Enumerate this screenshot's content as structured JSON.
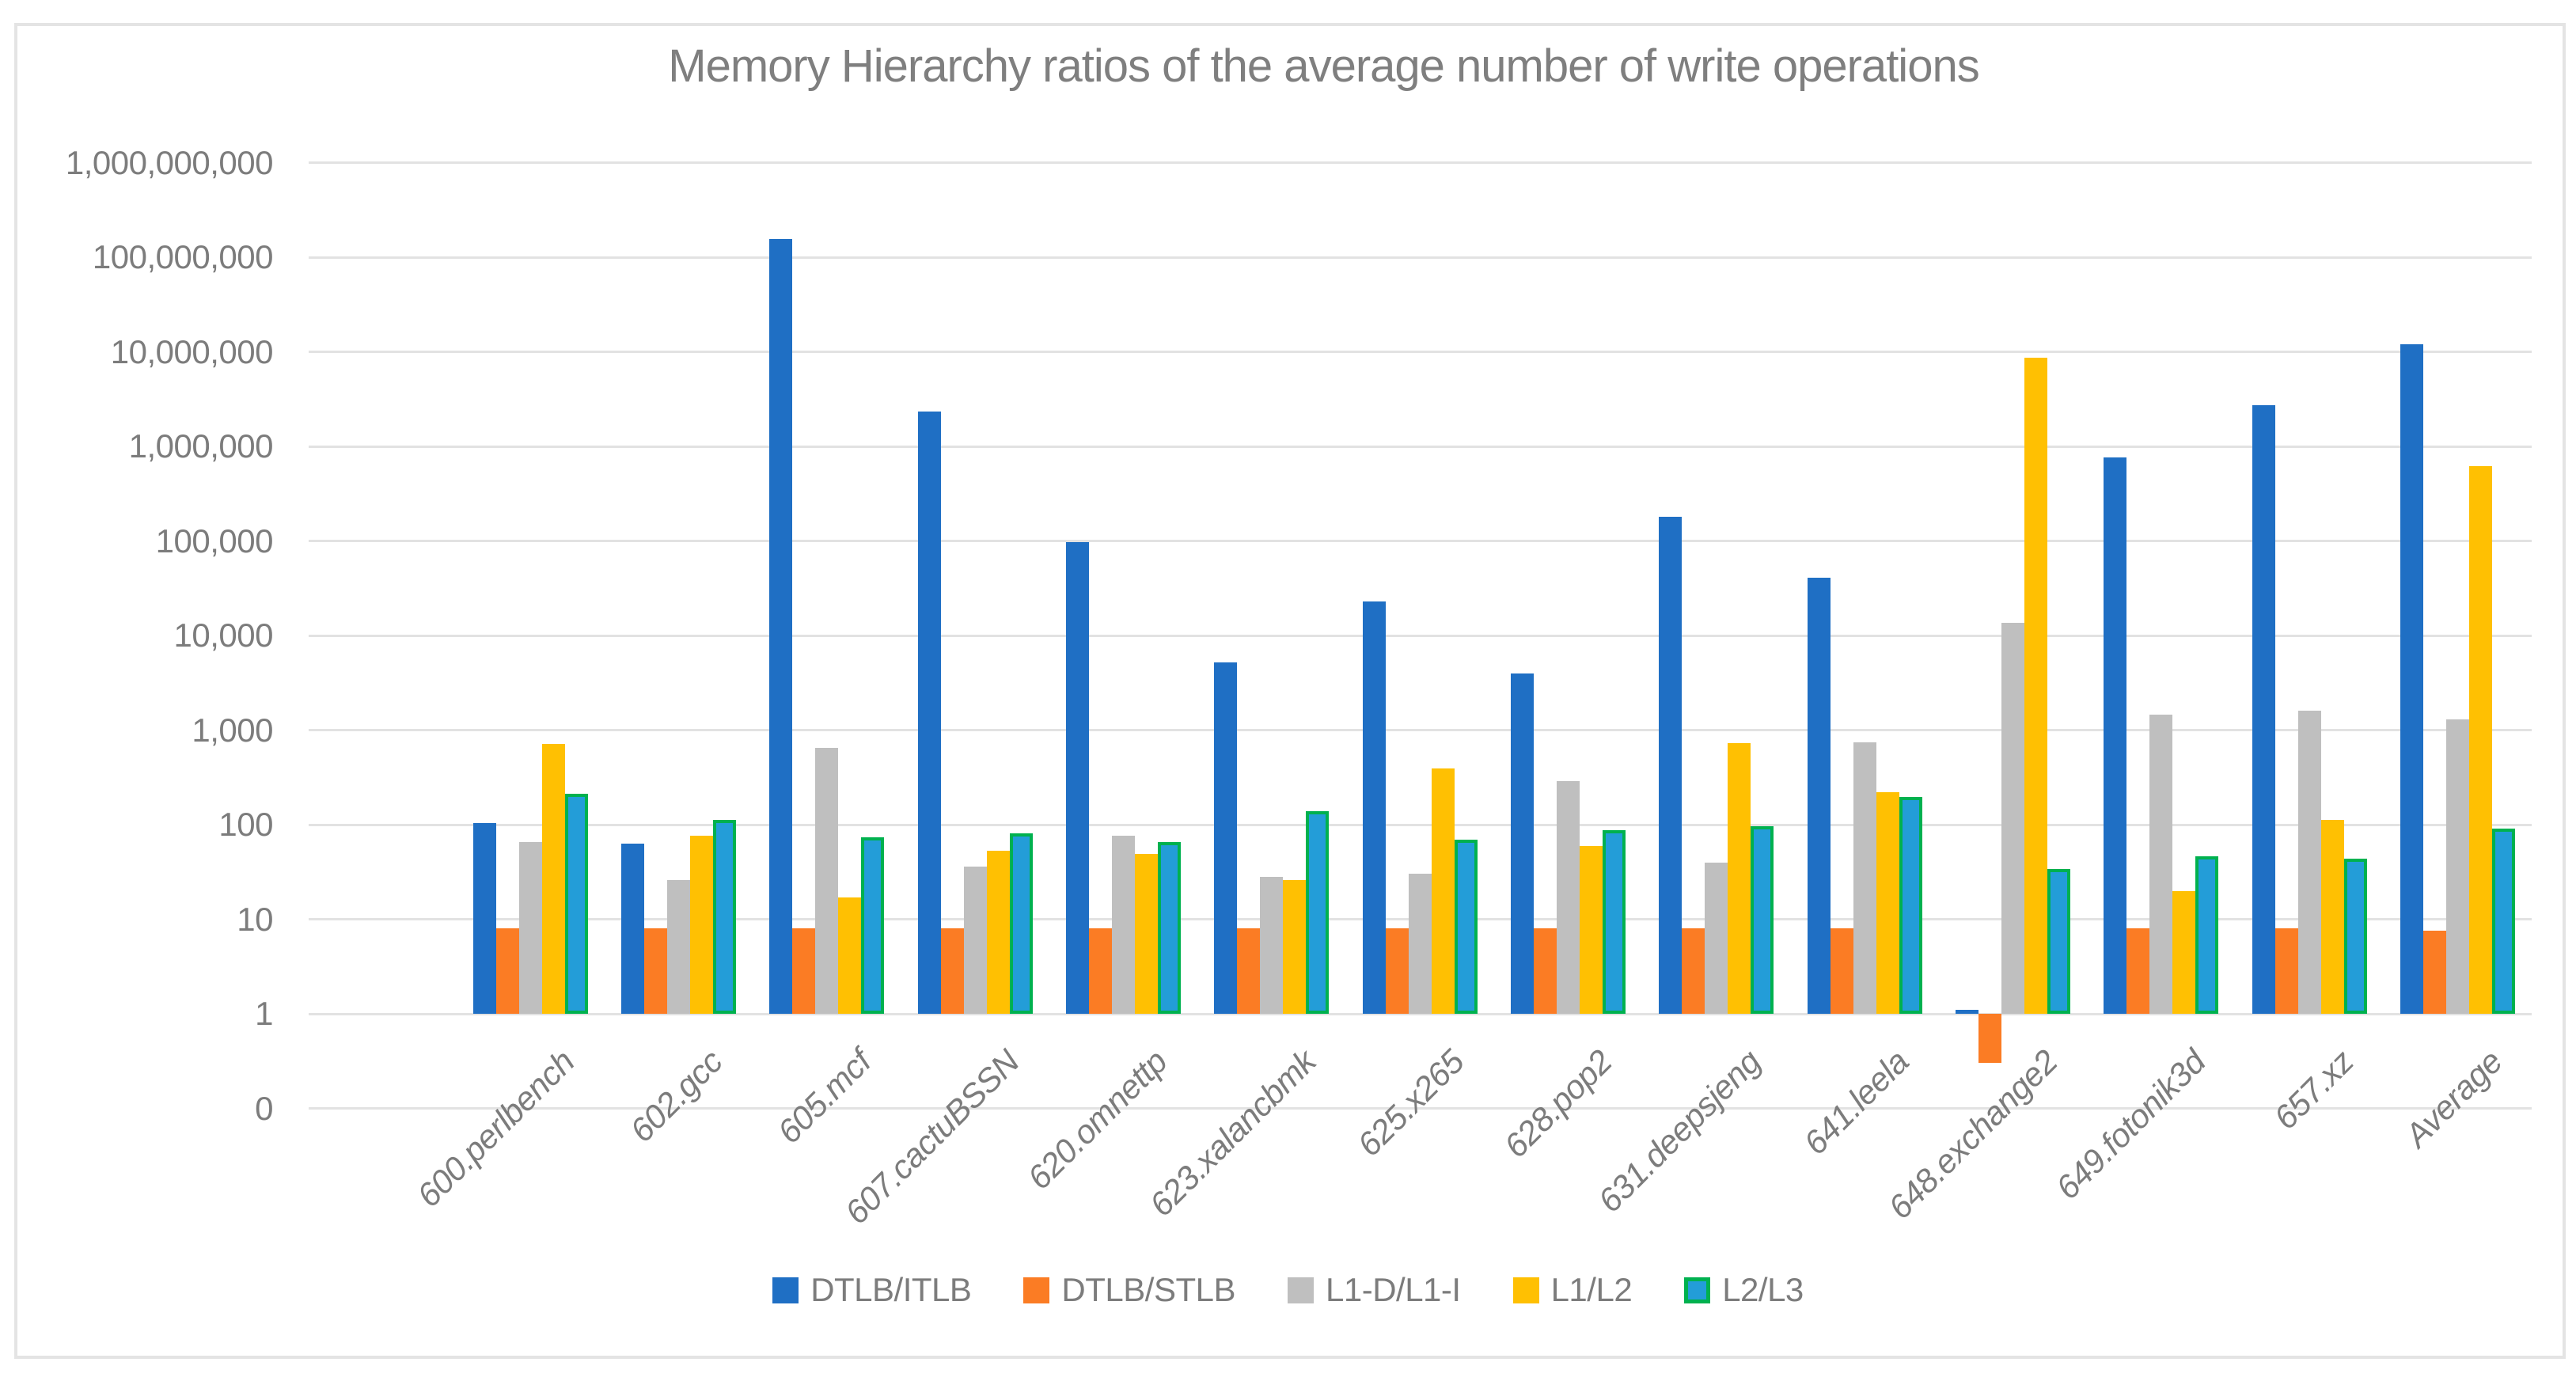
{
  "title": "Memory Hierarchy ratios of the average number of write operations",
  "chart_data": {
    "type": "bar",
    "y_scale": "log10",
    "grid": true,
    "legend_position": "bottom",
    "ylim": [
      1,
      1000000000
    ],
    "ytick_labels": [
      "1,000,000,000",
      "100,000,000",
      "10,000,000",
      "1,000,000",
      "100,000",
      "10,000",
      "1,000",
      "100",
      "10",
      "1",
      "0"
    ],
    "categories": [
      "600.perlbench",
      "602.gcc",
      "605.mcf",
      "607.cactuBSSN",
      "620.omnettp",
      "623.xalancbmk",
      "625.x265",
      "628.pop2",
      "631.deepsjeng",
      "641.leela",
      "648.exchange2",
      "649.fotonik3d",
      "657.xz",
      "Average"
    ],
    "series": [
      {
        "name": "DTLB/ITLB",
        "color": "#1f6fc4",
        "values": [
          103,
          63,
          155000000,
          2350000,
          97000,
          5200,
          23000,
          4000,
          180000,
          41000,
          1.1,
          760000,
          2700000,
          12000000
        ]
      },
      {
        "name": "DTLB/STLB",
        "color": "#fb7c24",
        "values": [
          8,
          8,
          8,
          8,
          8,
          8,
          8,
          8,
          8,
          8,
          0.3,
          8,
          8,
          7.5
        ]
      },
      {
        "name": "L1-D/L1-I",
        "color": "#bfbfbf",
        "values": [
          65,
          26,
          650,
          36,
          76,
          28,
          30,
          290,
          40,
          740,
          13500,
          1450,
          1600,
          1300
        ]
      },
      {
        "name": "L1/L2",
        "color": "#ffc002",
        "values": [
          720,
          76,
          17,
          53,
          49,
          26,
          390,
          60,
          730,
          220,
          8700000,
          20,
          112,
          620000
        ]
      },
      {
        "name": "L2/L3",
        "color": "#239dd8",
        "border_color": "#00b14f",
        "values": [
          210,
          113,
          73,
          81,
          65,
          140,
          70,
          88,
          97,
          195,
          34,
          46,
          44,
          90
        ]
      }
    ]
  }
}
